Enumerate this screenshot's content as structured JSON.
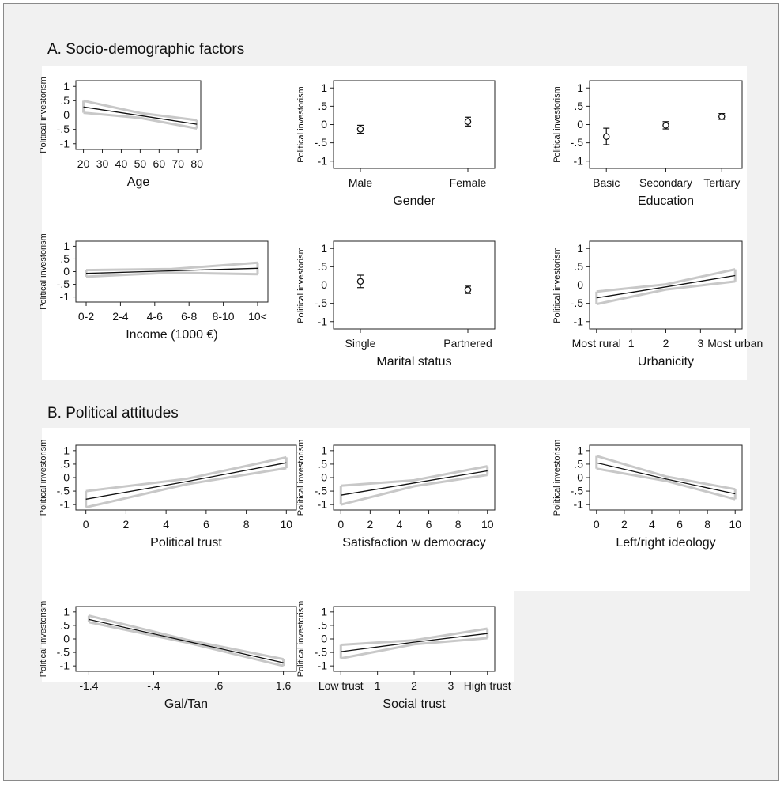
{
  "sections": {
    "a_title": "A. Socio-demographic factors",
    "b_title": "B. Political attitudes"
  },
  "colors": {
    "line": "#111111",
    "ci": "#c8c8c8",
    "background": "#f1f1f1",
    "panel": "#ffffff"
  },
  "chart_data": [
    {
      "id": "age",
      "type": "line",
      "xlabel": "Age",
      "ylabel": "Political investorism",
      "xlim": [
        16,
        82
      ],
      "ylim": [
        -1.2,
        1.2
      ],
      "xticks": [
        {
          "v": 20,
          "label": "20"
        },
        {
          "v": 30,
          "label": "30"
        },
        {
          "v": 40,
          "label": "40"
        },
        {
          "v": 50,
          "label": "50"
        },
        {
          "v": 60,
          "label": "60"
        },
        {
          "v": 70,
          "label": "70"
        },
        {
          "v": 80,
          "label": "80"
        }
      ],
      "yticks": [
        {
          "v": 1,
          "label": "1"
        },
        {
          "v": 0.5,
          "label": ".5"
        },
        {
          "v": 0,
          "label": "0"
        },
        {
          "v": -0.5,
          "label": "-.5"
        },
        {
          "v": -1,
          "label": "-1"
        }
      ],
      "series": [
        {
          "x": [
            20,
            50,
            80
          ],
          "estimate": [
            0.28,
            -0.02,
            -0.32
          ],
          "lower": [
            0.08,
            -0.1,
            -0.47
          ],
          "upper": [
            0.5,
            0.07,
            -0.18
          ]
        }
      ]
    },
    {
      "id": "gender",
      "type": "point",
      "xlabel": "Gender",
      "ylabel": "Political investorism",
      "xlim": [
        0,
        3
      ],
      "ylim": [
        -1.2,
        1.2
      ],
      "xticks": [
        {
          "v": 0.5,
          "label": "Male"
        },
        {
          "v": 2.5,
          "label": "Female"
        }
      ],
      "yticks": [
        {
          "v": 1,
          "label": "1"
        },
        {
          "v": 0.5,
          "label": ".5"
        },
        {
          "v": 0,
          "label": "0"
        },
        {
          "v": -0.5,
          "label": "-.5"
        },
        {
          "v": -1,
          "label": "-1"
        }
      ],
      "points": [
        {
          "x": 0.5,
          "estimate": -0.13,
          "lower": -0.24,
          "upper": -0.02
        },
        {
          "x": 2.5,
          "estimate": 0.08,
          "lower": -0.04,
          "upper": 0.2
        }
      ]
    },
    {
      "id": "education",
      "type": "point",
      "xlabel": "Education",
      "ylabel": "Political investorism",
      "xlim": [
        0,
        3
      ],
      "ylim": [
        -1.2,
        1.2
      ],
      "xticks": [
        {
          "v": 0.33,
          "label": "Basic"
        },
        {
          "v": 1.5,
          "label": "Secondary"
        },
        {
          "v": 2.6,
          "label": "Tertiary"
        }
      ],
      "yticks": [
        {
          "v": 1,
          "label": "1"
        },
        {
          "v": 0.5,
          "label": ".5"
        },
        {
          "v": 0,
          "label": "0"
        },
        {
          "v": -0.5,
          "label": "-.5"
        },
        {
          "v": -1,
          "label": "-1"
        }
      ],
      "points": [
        {
          "x": 0.33,
          "estimate": -0.33,
          "lower": -0.55,
          "upper": -0.1
        },
        {
          "x": 1.5,
          "estimate": -0.02,
          "lower": -0.12,
          "upper": 0.08
        },
        {
          "x": 2.6,
          "estimate": 0.22,
          "lower": 0.14,
          "upper": 0.3
        }
      ]
    },
    {
      "id": "income",
      "type": "line",
      "xlabel": "Income (1000 €)",
      "ylabel": "Political investorism",
      "xlim": [
        -0.3,
        5.3
      ],
      "ylim": [
        -1.2,
        1.2
      ],
      "xticks": [
        {
          "v": 0,
          "label": "0-2"
        },
        {
          "v": 1,
          "label": "2-4"
        },
        {
          "v": 2,
          "label": "4-6"
        },
        {
          "v": 3,
          "label": "6-8"
        },
        {
          "v": 4,
          "label": "8-10"
        },
        {
          "v": 5,
          "label": "10<"
        }
      ],
      "yticks": [
        {
          "v": 1,
          "label": "1"
        },
        {
          "v": 0.5,
          "label": ".5"
        },
        {
          "v": 0,
          "label": "0"
        },
        {
          "v": -0.5,
          "label": "-.5"
        },
        {
          "v": -1,
          "label": "-1"
        }
      ],
      "series": [
        {
          "x": [
            0,
            2.5,
            5
          ],
          "estimate": [
            -0.07,
            0.03,
            0.13
          ],
          "lower": [
            -0.2,
            -0.04,
            -0.1
          ],
          "upper": [
            0.06,
            0.1,
            0.35
          ]
        }
      ]
    },
    {
      "id": "marital",
      "type": "point",
      "xlabel": "Marital status",
      "ylabel": "Political investorism",
      "xlim": [
        0,
        3
      ],
      "ylim": [
        -1.2,
        1.2
      ],
      "xticks": [
        {
          "v": 0.5,
          "label": "Single"
        },
        {
          "v": 2.5,
          "label": "Partnered"
        }
      ],
      "yticks": [
        {
          "v": 1,
          "label": "1"
        },
        {
          "v": 0.5,
          "label": ".5"
        },
        {
          "v": 0,
          "label": "0"
        },
        {
          "v": -0.5,
          "label": "-.5"
        },
        {
          "v": -1,
          "label": "-1"
        }
      ],
      "points": [
        {
          "x": 0.5,
          "estimate": 0.1,
          "lower": -0.07,
          "upper": 0.27
        },
        {
          "x": 2.5,
          "estimate": -0.13,
          "lower": -0.23,
          "upper": -0.03
        }
      ]
    },
    {
      "id": "urbanicity",
      "type": "line",
      "xlabel": "Urbanicity",
      "ylabel": "Political investorism",
      "xlim": [
        -0.2,
        4.2
      ],
      "ylim": [
        -1.2,
        1.2
      ],
      "xticks": [
        {
          "v": 0,
          "label": "Most rural"
        },
        {
          "v": 1,
          "label": "1"
        },
        {
          "v": 2,
          "label": "2"
        },
        {
          "v": 3,
          "label": "3"
        },
        {
          "v": 4,
          "label": "Most urban"
        }
      ],
      "yticks": [
        {
          "v": 1,
          "label": "1"
        },
        {
          "v": 0.5,
          "label": ".5"
        },
        {
          "v": 0,
          "label": "0"
        },
        {
          "v": -0.5,
          "label": "-.5"
        },
        {
          "v": -1,
          "label": "-1"
        }
      ],
      "series": [
        {
          "x": [
            0,
            2,
            4
          ],
          "estimate": [
            -0.35,
            -0.05,
            0.26
          ],
          "lower": [
            -0.52,
            -0.12,
            0.1
          ],
          "upper": [
            -0.18,
            0.02,
            0.43
          ]
        }
      ]
    },
    {
      "id": "political_trust",
      "type": "line",
      "xlabel": "Political trust",
      "ylabel": "Political investorism",
      "xlim": [
        -0.5,
        10.5
      ],
      "ylim": [
        -1.2,
        1.2
      ],
      "xticks": [
        {
          "v": 0,
          "label": "0"
        },
        {
          "v": 2,
          "label": "2"
        },
        {
          "v": 4,
          "label": "4"
        },
        {
          "v": 6,
          "label": "6"
        },
        {
          "v": 8,
          "label": "8"
        },
        {
          "v": 10,
          "label": "10"
        }
      ],
      "yticks": [
        {
          "v": 1,
          "label": "1"
        },
        {
          "v": 0.5,
          "label": ".5"
        },
        {
          "v": 0,
          "label": "0"
        },
        {
          "v": -0.5,
          "label": "-.5"
        },
        {
          "v": -1,
          "label": "-1"
        }
      ],
      "series": [
        {
          "x": [
            0,
            5,
            10
          ],
          "estimate": [
            -0.8,
            -0.15,
            0.55
          ],
          "lower": [
            -1.1,
            -0.25,
            0.35
          ],
          "upper": [
            -0.5,
            -0.05,
            0.75
          ]
        }
      ]
    },
    {
      "id": "satisfaction",
      "type": "line",
      "xlabel": "Satisfaction w democracy",
      "ylabel": "Political investorism",
      "xlim": [
        -0.5,
        10.5
      ],
      "ylim": [
        -1.2,
        1.2
      ],
      "xticks": [
        {
          "v": 0,
          "label": "0"
        },
        {
          "v": 2,
          "label": "2"
        },
        {
          "v": 4,
          "label": "4"
        },
        {
          "v": 6,
          "label": "6"
        },
        {
          "v": 8,
          "label": "8"
        },
        {
          "v": 10,
          "label": "10"
        }
      ],
      "yticks": [
        {
          "v": 1,
          "label": "1"
        },
        {
          "v": 0.5,
          "label": ".5"
        },
        {
          "v": 0,
          "label": "0"
        },
        {
          "v": -0.5,
          "label": "-.5"
        },
        {
          "v": -1,
          "label": "-1"
        }
      ],
      "series": [
        {
          "x": [
            0,
            5,
            10
          ],
          "estimate": [
            -0.65,
            -0.2,
            0.25
          ],
          "lower": [
            -1.0,
            -0.32,
            0.1
          ],
          "upper": [
            -0.3,
            -0.1,
            0.42
          ]
        }
      ]
    },
    {
      "id": "ideology",
      "type": "line",
      "xlabel": "Left/right ideology",
      "ylabel": "Political investorism",
      "xlim": [
        -0.5,
        10.5
      ],
      "ylim": [
        -1.2,
        1.2
      ],
      "xticks": [
        {
          "v": 0,
          "label": "0"
        },
        {
          "v": 2,
          "label": "2"
        },
        {
          "v": 4,
          "label": "4"
        },
        {
          "v": 6,
          "label": "6"
        },
        {
          "v": 8,
          "label": "8"
        },
        {
          "v": 10,
          "label": "10"
        }
      ],
      "yticks": [
        {
          "v": 1,
          "label": "1"
        },
        {
          "v": 0.5,
          "label": ".5"
        },
        {
          "v": 0,
          "label": "0"
        },
        {
          "v": -0.5,
          "label": "-.5"
        },
        {
          "v": -1,
          "label": "-1"
        }
      ],
      "series": [
        {
          "x": [
            0,
            5,
            10
          ],
          "estimate": [
            0.55,
            -0.05,
            -0.6
          ],
          "lower": [
            0.33,
            -0.12,
            -0.8
          ],
          "upper": [
            0.8,
            0.04,
            -0.43
          ]
        }
      ]
    },
    {
      "id": "galtan",
      "type": "line",
      "xlabel": "Gal/Tan",
      "ylabel": "Political investorism",
      "xlim": [
        -1.6,
        1.8
      ],
      "ylim": [
        -1.2,
        1.2
      ],
      "xticks": [
        {
          "v": -1.4,
          "label": "-1.4"
        },
        {
          "v": -0.4,
          "label": "-.4"
        },
        {
          "v": 0.6,
          "label": ".6"
        },
        {
          "v": 1.6,
          "label": "1.6"
        }
      ],
      "yticks": [
        {
          "v": 1,
          "label": "1"
        },
        {
          "v": 0.5,
          "label": ".5"
        },
        {
          "v": 0,
          "label": "0"
        },
        {
          "v": -0.5,
          "label": "-.5"
        },
        {
          "v": -1,
          "label": "-1"
        }
      ],
      "series": [
        {
          "x": [
            -1.4,
            0.1,
            1.6
          ],
          "estimate": [
            0.72,
            -0.08,
            -0.88
          ],
          "lower": [
            0.62,
            -0.13,
            -1.0
          ],
          "upper": [
            0.86,
            -0.03,
            -0.75
          ]
        }
      ]
    },
    {
      "id": "social_trust",
      "type": "line",
      "xlabel": "Social trust",
      "ylabel": "Political investorism",
      "xlim": [
        -0.2,
        4.2
      ],
      "ylim": [
        -1.2,
        1.2
      ],
      "xticks": [
        {
          "v": 0,
          "label": "Low trust"
        },
        {
          "v": 1,
          "label": "1"
        },
        {
          "v": 2,
          "label": "2"
        },
        {
          "v": 3,
          "label": "3"
        },
        {
          "v": 4,
          "label": "High trust"
        }
      ],
      "yticks": [
        {
          "v": 1,
          "label": "1"
        },
        {
          "v": 0.5,
          "label": ".5"
        },
        {
          "v": 0,
          "label": "0"
        },
        {
          "v": -0.5,
          "label": "-.5"
        },
        {
          "v": -1,
          "label": "-1"
        }
      ],
      "series": [
        {
          "x": [
            0,
            2,
            4
          ],
          "estimate": [
            -0.47,
            -0.12,
            0.2
          ],
          "lower": [
            -0.72,
            -0.2,
            0.03
          ],
          "upper": [
            -0.22,
            -0.05,
            0.38
          ]
        }
      ]
    }
  ]
}
